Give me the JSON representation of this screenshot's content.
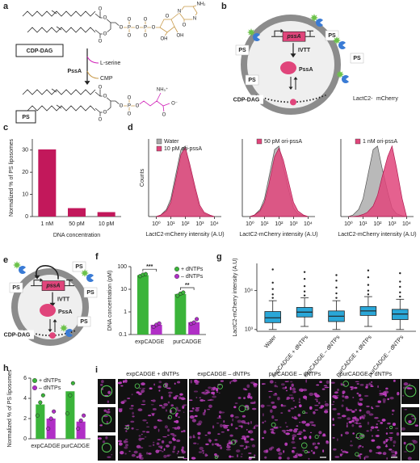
{
  "figure": {
    "a": {
      "letter": "a",
      "lipid_top": "CDP-DAG",
      "enzyme": "PssA",
      "substrate": "L-serine",
      "byproduct": "CMP",
      "lipid_bottom": "PS",
      "atoms_top": [
        "O",
        "O",
        "O",
        "O",
        "O",
        "P",
        "O",
        "O",
        "O",
        "P",
        "O",
        "O",
        "O",
        "O",
        "OH",
        "OH",
        "N",
        "N",
        "NH₂",
        "O"
      ],
      "atoms_bottom": [
        "O",
        "O",
        "O",
        "O",
        "O",
        "P",
        "O",
        "O",
        "O",
        "O",
        "O⁻",
        "NH₃⁺"
      ]
    },
    "b": {
      "letter": "b",
      "ps": [
        "PS",
        "PS",
        "PS",
        "PS"
      ],
      "gene": "pssA",
      "process": "IVTT",
      "protein": "PssA",
      "lipid": "CDP-DAG",
      "probe_a": "LactC2-",
      "probe_b": "mCherry"
    },
    "e": {
      "letter": "e",
      "ps": [
        "PS",
        "PS",
        "PS",
        "PS"
      ],
      "gene": "pssA",
      "process": "IVTT",
      "protein": "PssA",
      "lipid": "CDP-DAG"
    },
    "i": {
      "letter": "i",
      "titles": [
        "expCADGE + dNTPs",
        "expCADGE – dNTPs",
        "purCADGE – dNTPs",
        "purCADGE + dNTPs"
      ]
    }
  },
  "chart_data": [
    {
      "type": "bar",
      "panel": "c",
      "y_label": "Normalized % of PS liposomes",
      "x_label": "DNA concentration",
      "categories": [
        "1 nM",
        "50 pM",
        "10 pM"
      ],
      "values": [
        30.3,
        3.8,
        2.0
      ],
      "color": "#c2185b",
      "ylim": [
        0,
        35
      ],
      "yticks": [
        0,
        10,
        20,
        30
      ]
    },
    {
      "type": "area",
      "panel": "d",
      "y_label": "Counts",
      "x_label": "LactC2-mCherry intensity (A.U)",
      "log_x": true,
      "xlim": [
        0.3,
        30000
      ],
      "ylim": [
        0,
        1.1
      ],
      "xticks": [
        {
          "value": 1,
          "label": "10⁰"
        },
        {
          "value": 10,
          "label": "10¹"
        },
        {
          "value": 100,
          "label": "10²"
        },
        {
          "value": 1000,
          "label": "10³"
        },
        {
          "value": 10000,
          "label": "10⁴"
        }
      ],
      "x": [
        1,
        2,
        5,
        10,
        20,
        50,
        100,
        200,
        500,
        1000,
        2000,
        5000,
        10000
      ],
      "subplots": [
        {
          "series": [
            {
              "name": "Water",
              "color": "#a8a8a8",
              "values": [
                0,
                0.02,
                0.1,
                0.25,
                0.55,
                0.95,
                1.0,
                0.7,
                0.35,
                0.12,
                0.04,
                0.01,
                0
              ]
            },
            {
              "name": "10 pM ori-pssA",
              "color": "#e0457b",
              "values": [
                0,
                0.02,
                0.08,
                0.2,
                0.48,
                0.88,
                0.98,
                0.75,
                0.4,
                0.16,
                0.06,
                0.02,
                0
              ]
            }
          ]
        },
        {
          "series": [
            {
              "name": null,
              "color": "#a8a8a8",
              "values": [
                0,
                0.02,
                0.1,
                0.25,
                0.55,
                0.95,
                1.0,
                0.7,
                0.35,
                0.12,
                0.04,
                0.01,
                0
              ]
            },
            {
              "name": "50 pM ori-pssA",
              "color": "#e0457b",
              "values": [
                0,
                0.02,
                0.08,
                0.2,
                0.45,
                0.85,
                0.97,
                0.8,
                0.46,
                0.2,
                0.08,
                0.02,
                0
              ]
            }
          ]
        },
        {
          "series": [
            {
              "name": null,
              "color": "#a8a8a8",
              "values": [
                0,
                0.02,
                0.1,
                0.25,
                0.55,
                0.95,
                1.0,
                0.7,
                0.35,
                0.12,
                0.04,
                0.01,
                0
              ]
            },
            {
              "name": "1 nM ori-pssA",
              "color": "#e0457b",
              "values": [
                0,
                0,
                0.01,
                0.03,
                0.06,
                0.15,
                0.3,
                0.55,
                0.85,
                1.0,
                0.7,
                0.25,
                0
              ]
            }
          ]
        }
      ]
    },
    {
      "type": "dot_bar",
      "panel": "f",
      "y_label": "DNA concentration (pM)",
      "categories": [
        "expCADGE",
        "purCADGE"
      ],
      "log_y": true,
      "ylim": [
        0.1,
        100
      ],
      "yticks": [
        0.1,
        1,
        10,
        100
      ],
      "legend": "upper right",
      "annotations": [
        "***",
        "**"
      ],
      "series": [
        {
          "name": "+ dNTPs",
          "color": "#3bb43a",
          "values": [
            42,
            6.2
          ],
          "points": [
            [
              38,
              44,
              47
            ],
            [
              5.2,
              6.4,
              7.2
            ]
          ]
        },
        {
          "name": "– dNTPs",
          "color": "#b02fc6",
          "values": [
            0.27,
            0.35
          ],
          "points": [
            [
              0.22,
              0.27,
              0.31
            ],
            [
              0.3,
              0.34,
              0.48
            ]
          ]
        }
      ]
    },
    {
      "type": "box",
      "panel": "g",
      "y_label": "LactC2-mCherry intensity (A.U)",
      "categories": [
        "Water",
        "expCADGE + dNTPs",
        "expCADGE – dNTPs",
        "purCADGE + dNTPs",
        "purCADGE – dNTPs"
      ],
      "color": "#2aa7d8",
      "log_y": true,
      "ylim": [
        900,
        50000
      ],
      "yticks": [
        {
          "value": 1000,
          "label": "10³"
        },
        {
          "value": 10000,
          "label": "10⁴"
        }
      ],
      "boxes": [
        {
          "low": 1000,
          "q1": 1500,
          "median": 2000,
          "q3": 2900,
          "high": 5500,
          "outliers": [
            6500,
            8000,
            11000,
            16000,
            35000
          ]
        },
        {
          "low": 1200,
          "q1": 2100,
          "median": 2800,
          "q3": 3700,
          "high": 6500,
          "outliers": [
            7500,
            9500,
            13000,
            20000,
            30000
          ]
        },
        {
          "low": 1000,
          "q1": 1600,
          "median": 2200,
          "q3": 3000,
          "high": 5500,
          "outliers": [
            6500,
            8500,
            12000,
            18000,
            25000
          ]
        },
        {
          "low": 1200,
          "q1": 2300,
          "median": 3000,
          "q3": 3900,
          "high": 7000,
          "outliers": [
            8000,
            10000,
            14000,
            22000,
            33000
          ]
        },
        {
          "low": 1000,
          "q1": 1800,
          "median": 2500,
          "q3": 3300,
          "high": 6000,
          "outliers": [
            7000,
            9000,
            12500,
            17000,
            28000
          ]
        }
      ]
    },
    {
      "type": "dot_bar",
      "panel": "h",
      "y_label": "Normalized % of PS liposomes",
      "categories": [
        "expCADGE",
        "purCADGE"
      ],
      "ylim": [
        0,
        6
      ],
      "yticks": [
        0,
        2,
        4,
        6
      ],
      "legend": "upper left",
      "series": [
        {
          "name": "+ dNTPs",
          "color": "#3bb43a",
          "values": [
            3.4,
            4.7
          ],
          "points": [
            [
              2.3,
              3.6,
              4.3
            ],
            [
              2.5,
              4.3,
              5.5
            ]
          ]
        },
        {
          "name": "– dNTPs",
          "color": "#b02fc6",
          "values": [
            2.0,
            1.7
          ],
          "points": [
            [
              1.0,
              2.0,
              2.7
            ],
            [
              1.0,
              1.8,
              2.3
            ]
          ]
        }
      ]
    }
  ]
}
